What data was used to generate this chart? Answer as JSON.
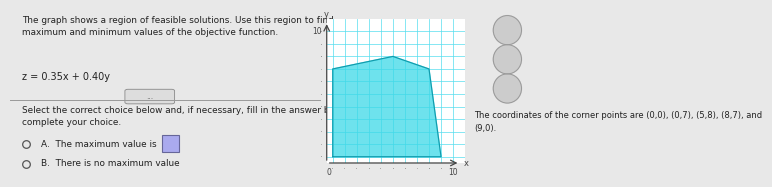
{
  "title_text": "The graph shows a region of feasible solutions. Use this region to find\nmaximum and minimum values of the objective function.",
  "equation": "z = 0.35x + 0.40y",
  "instruction": "Select the correct choice below and, if necessary, fill in the answer box to\ncomplete your choice.",
  "choice_a": "A.  The maximum value is",
  "choice_b": "B.  There is no maximum value",
  "corner_points_text": "The coordinates of the corner points are (0,0), (0,7), (5,8), (8,7), and\n(9,0).",
  "corner_points": [
    [
      0,
      0
    ],
    [
      0,
      7
    ],
    [
      5,
      8
    ],
    [
      8,
      7
    ],
    [
      9,
      0
    ]
  ],
  "xlim": [
    -0.5,
    11
  ],
  "ylim": [
    -0.5,
    11
  ],
  "fill_color": "#3DD9E8",
  "fill_alpha": 0.75,
  "grid_color": "#55DDEE",
  "axis_color": "#444444",
  "bg_color": "#e8e8e8",
  "text_color": "#222222",
  "radio_color": "#555555",
  "divider_color": "#999999",
  "answer_box_color": "#7777cc"
}
